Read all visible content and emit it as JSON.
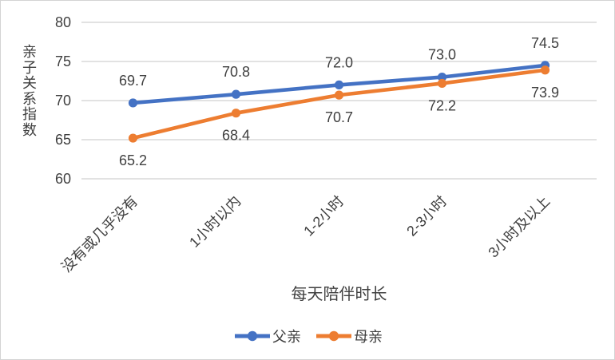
{
  "chart_data": {
    "type": "line",
    "title": "",
    "xlabel": "每天陪伴时长",
    "ylabel": "亲子关系指数",
    "categories": [
      "没有或几乎没有",
      "1小时以内",
      "1-2小时",
      "2-3小时",
      "3小时及以上"
    ],
    "series": [
      {
        "name": "父亲",
        "values": [
          69.7,
          70.8,
          72.0,
          73.0,
          74.5
        ],
        "labels": [
          "69.7",
          "70.8",
          "72.0",
          "73.0",
          "74.5"
        ],
        "color": "#4472C4",
        "label_position": "above"
      },
      {
        "name": "母亲",
        "values": [
          65.2,
          68.4,
          70.7,
          72.2,
          73.9
        ],
        "labels": [
          "65.2",
          "68.4",
          "70.7",
          "72.2",
          "73.9"
        ],
        "color": "#ED7D31",
        "label_position": "below"
      }
    ],
    "ylim": [
      60,
      80
    ],
    "yticks": [
      60,
      65,
      70,
      75,
      80
    ],
    "grid": "horizontal",
    "legend_position": "bottom",
    "colors": {
      "grid": "#D9D9D9",
      "text": "#404040",
      "border": "#D4D4D4",
      "background": "#FFFFFF"
    }
  }
}
